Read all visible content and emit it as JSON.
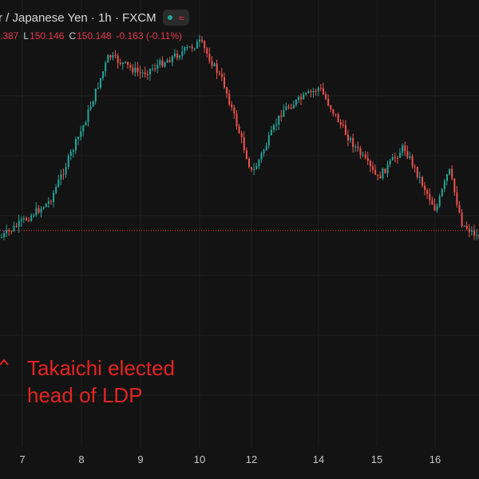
{
  "header": {
    "title": "r / Japanese Yen · 1h · FXCM",
    "status_color": "#26a69a",
    "indicator_icon": "wave-icon"
  },
  "ohlc": {
    "open_partial": ".387",
    "low_label": "L",
    "low": "150.146",
    "close_label": "C",
    "close": "150.148",
    "change": "-0.163 (-0.11%)"
  },
  "annotation": {
    "line1": "Takaichi elected",
    "line2": "head of LDP",
    "color": "#e32424",
    "icon": "arrow-up-icon"
  },
  "chart_data": {
    "type": "candlestick",
    "colors": {
      "up": "#26a69a",
      "down": "#ef5350",
      "reference_line": "#e5394f"
    },
    "x_tick_labels": [
      "7",
      "8",
      "9",
      "10",
      "12",
      "14",
      "15",
      "16"
    ],
    "reference_line": 149.28,
    "ylim": [
      146.9,
      151.55
    ],
    "key_points": [
      {
        "x": "7",
        "y": 149.2
      },
      {
        "x": "7",
        "y": 149.6
      },
      {
        "x": "8",
        "y": 150.4
      },
      {
        "x": "8",
        "y": 151.2
      },
      {
        "x": "9",
        "y": 151.0
      },
      {
        "x": "10",
        "y": 151.35
      },
      {
        "x": "10",
        "y": 150.9
      },
      {
        "x": "12",
        "y": 149.9
      },
      {
        "x": "12",
        "y": 150.6
      },
      {
        "x": "14",
        "y": 150.85
      },
      {
        "x": "14",
        "y": 150.35
      },
      {
        "x": "15",
        "y": 149.85
      },
      {
        "x": "15",
        "y": 150.2
      },
      {
        "x": "16",
        "y": 149.5
      },
      {
        "x": "16",
        "y": 149.95
      },
      {
        "x": "16",
        "y": 149.35
      }
    ]
  }
}
